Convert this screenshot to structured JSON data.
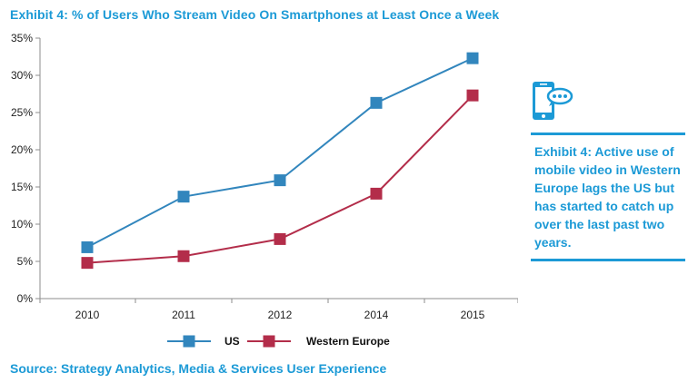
{
  "title": "Exhibit 4: % of Users Who Stream Video On Smartphones at Least Once a Week",
  "sidebar": {
    "icon": "smartphone-chat-icon",
    "text": "Exhibit 4: Active use of mobile video in Western Europe lags the US but has started to catch up over the last past two years."
  },
  "source": "Source: Strategy Analytics, Media & Services User Experience",
  "colors": {
    "accent": "#1c9ad6",
    "us": "#3286bd",
    "western_europe": "#b32d4a",
    "axis": "#8c8c8c"
  },
  "chart_data": {
    "type": "line",
    "title": "Exhibit 4: % of Users Who Stream Video On Smartphones at Least Once a Week",
    "x": [
      "2010",
      "2011",
      "2012",
      "2014",
      "2015"
    ],
    "series": [
      {
        "name": "US",
        "values": [
          6.9,
          13.7,
          15.9,
          26.3,
          32.3
        ],
        "color": "#3286bd"
      },
      {
        "name": "Western Europe",
        "values": [
          4.8,
          5.7,
          8.0,
          14.1,
          27.3
        ],
        "color": "#b32d4a"
      }
    ],
    "ylim": [
      0,
      35
    ],
    "yticks": [
      0,
      5,
      10,
      15,
      20,
      25,
      30,
      35
    ],
    "ytick_labels": [
      "0%",
      "5%",
      "10%",
      "15%",
      "20%",
      "25%",
      "30%",
      "35%"
    ],
    "grid": false,
    "legend": "bottom",
    "xlabel": "",
    "ylabel": ""
  }
}
